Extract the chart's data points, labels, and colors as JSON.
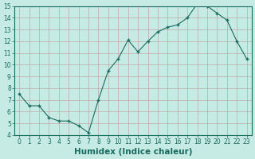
{
  "x": [
    0,
    1,
    2,
    3,
    4,
    5,
    6,
    7,
    8,
    9,
    10,
    11,
    12,
    13,
    14,
    15,
    16,
    17,
    18,
    19,
    20,
    21,
    22,
    23
  ],
  "y": [
    7.5,
    6.5,
    6.5,
    5.5,
    5.2,
    5.2,
    4.8,
    4.2,
    7.0,
    9.5,
    10.5,
    12.1,
    11.1,
    12.0,
    12.8,
    13.2,
    13.4,
    14.0,
    15.2,
    15.0,
    14.4,
    13.8,
    12.0,
    10.5
  ],
  "xlabel": "Humidex (Indice chaleur)",
  "ylim": [
    4,
    15
  ],
  "xlim": [
    -0.5,
    23.5
  ],
  "yticks": [
    4,
    5,
    6,
    7,
    8,
    9,
    10,
    11,
    12,
    13,
    14,
    15
  ],
  "xticks": [
    0,
    1,
    2,
    3,
    4,
    5,
    6,
    7,
    8,
    9,
    10,
    11,
    12,
    13,
    14,
    15,
    16,
    17,
    18,
    19,
    20,
    21,
    22,
    23
  ],
  "line_color": "#1a6b5f",
  "marker_color": "#1a6b5f",
  "bg_color": "#c5ebe4",
  "grid_color": "#c0a8a8",
  "tick_label_fontsize": 5.5,
  "xlabel_fontsize": 7.5
}
